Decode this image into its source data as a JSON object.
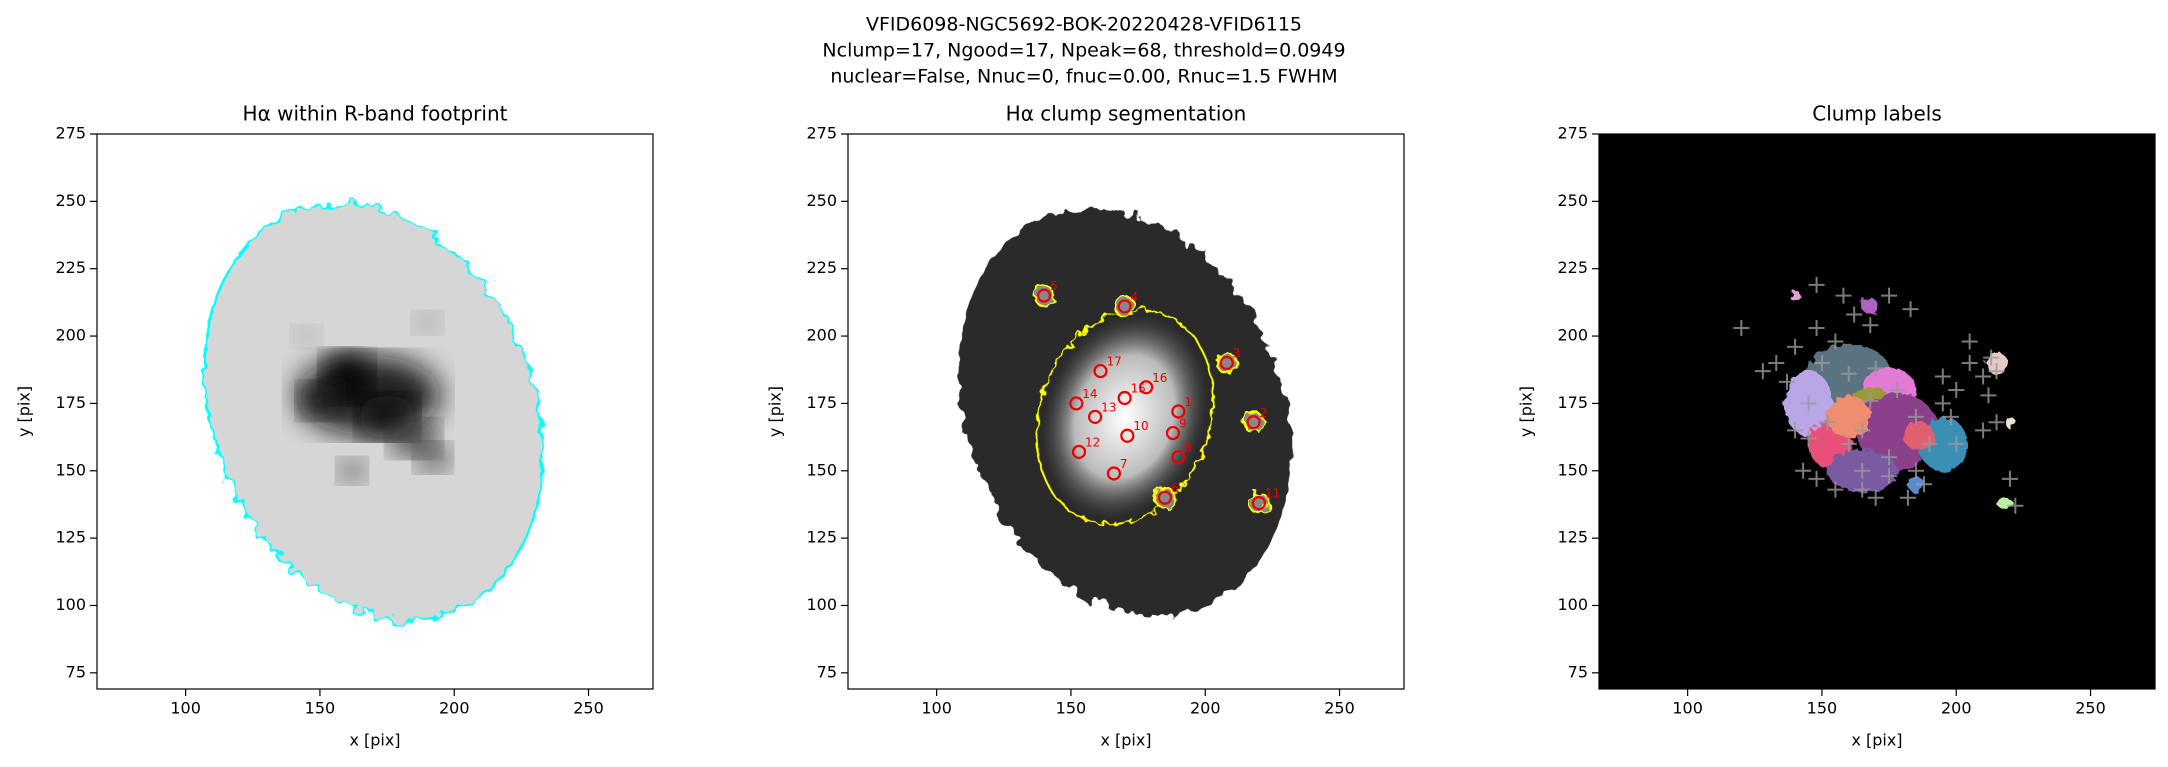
{
  "suptitle": [
    "VFID6098-NGC5692-BOK-20220428-VFID6115",
    "Nclump=17, Ngood=17, Npeak=68, threshold=0.0949",
    "nuclear=False, Nnuc=0, fnuc=0.00, Rnuc=1.5 FWHM"
  ],
  "chart_data": [
    {
      "type": "image",
      "title": "Hα within R-band footprint",
      "xlabel": "x [pix]",
      "ylabel": "y [pix]",
      "xlim": [
        67,
        274
      ],
      "ylim": [
        69,
        275
      ],
      "xticks": [
        100,
        150,
        200,
        250
      ],
      "yticks": [
        75,
        100,
        125,
        150,
        175,
        200,
        225,
        250,
        275
      ]
    },
    {
      "type": "image",
      "title": "Hα clump segmentation",
      "xlabel": "x [pix]",
      "ylabel": "y [pix]",
      "xlim": [
        67,
        274
      ],
      "ylim": [
        69,
        275
      ],
      "xticks": [
        100,
        150,
        200,
        250
      ],
      "yticks": [
        75,
        100,
        125,
        150,
        175,
        200,
        225,
        250,
        275
      ],
      "x": [
        140,
        170,
        208,
        161,
        178,
        170,
        152,
        190,
        159,
        218,
        188,
        171,
        153,
        190,
        166,
        185,
        220
      ],
      "y": [
        215,
        211,
        190,
        187,
        181,
        177,
        175,
        172,
        170,
        168,
        164,
        163,
        157,
        155,
        149,
        140,
        138
      ],
      "labels": [
        "5",
        "4",
        "3",
        "17",
        "16",
        "15",
        "14",
        "1",
        "13",
        "2",
        "9",
        "10",
        "12",
        "8",
        "7",
        "6",
        "11"
      ]
    },
    {
      "type": "labels",
      "title": "Clump labels",
      "xlabel": "x [pix]",
      "ylabel": "y [pix]",
      "xlim": [
        67,
        274
      ],
      "ylim": [
        69,
        275
      ],
      "xticks": [
        100,
        150,
        200,
        250
      ],
      "yticks": [
        75,
        100,
        125,
        150,
        175,
        200,
        225,
        250,
        275
      ]
    }
  ]
}
